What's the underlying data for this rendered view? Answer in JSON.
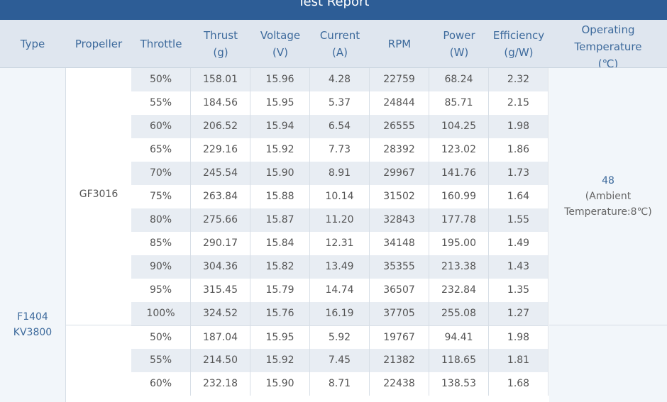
{
  "report": {
    "title": "Test Report"
  },
  "columns": [
    {
      "label": "Type"
    },
    {
      "label": "Propeller"
    },
    {
      "label": "Throttle"
    },
    {
      "label": "Thrust\n(g)"
    },
    {
      "label": "Voltage\n(V)"
    },
    {
      "label": "Current\n(A)"
    },
    {
      "label": "RPM"
    },
    {
      "label": "Power\n(W)"
    },
    {
      "label": "Efficiency\n(g/W)"
    },
    {
      "label": "Operating\nTemperature\n(℃)"
    }
  ],
  "motor": {
    "type": "F1404\nKV3800"
  },
  "groups": [
    {
      "propeller": "GF3016",
      "temperature": {
        "value": "48",
        "note": "(Ambient\nTemperature:8℃)"
      },
      "rows": [
        [
          "50%",
          "158.01",
          "15.96",
          "4.28",
          "22759",
          "68.24",
          "2.32"
        ],
        [
          "55%",
          "184.56",
          "15.95",
          "5.37",
          "24844",
          "85.71",
          "2.15"
        ],
        [
          "60%",
          "206.52",
          "15.94",
          "6.54",
          "26555",
          "104.25",
          "1.98"
        ],
        [
          "65%",
          "229.16",
          "15.92",
          "7.73",
          "28392",
          "123.02",
          "1.86"
        ],
        [
          "70%",
          "245.54",
          "15.90",
          "8.91",
          "29967",
          "141.76",
          "1.73"
        ],
        [
          "75%",
          "263.84",
          "15.88",
          "10.14",
          "31502",
          "160.99",
          "1.64"
        ],
        [
          "80%",
          "275.66",
          "15.87",
          "11.20",
          "32843",
          "177.78",
          "1.55"
        ],
        [
          "85%",
          "290.17",
          "15.84",
          "12.31",
          "34148",
          "195.00",
          "1.49"
        ],
        [
          "90%",
          "304.36",
          "15.82",
          "13.49",
          "35355",
          "213.38",
          "1.43"
        ],
        [
          "95%",
          "315.45",
          "15.79",
          "14.74",
          "36507",
          "232.84",
          "1.35"
        ],
        [
          "100%",
          "324.52",
          "15.76",
          "16.19",
          "37705",
          "255.08",
          "1.27"
        ]
      ]
    },
    {
      "propeller": "",
      "rows": [
        [
          "50%",
          "187.04",
          "15.95",
          "5.92",
          "19767",
          "94.41",
          "1.98"
        ],
        [
          "55%",
          "214.50",
          "15.92",
          "7.45",
          "21382",
          "118.65",
          "1.81"
        ],
        [
          "60%",
          "232.18",
          "15.90",
          "8.71",
          "22438",
          "138.53",
          "1.68"
        ]
      ]
    }
  ]
}
